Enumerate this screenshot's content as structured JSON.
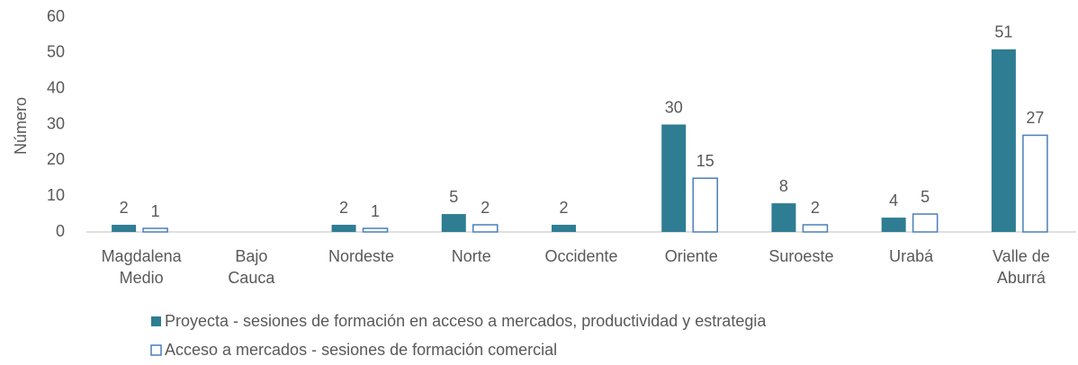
{
  "chart_data": {
    "type": "bar",
    "categories": [
      "Magdalena\nMedio",
      "Bajo\nCauca",
      "Nordeste",
      "Norte",
      "Occidente",
      "Oriente",
      "Suroeste",
      "Urabá",
      "Valle de\nAburrá"
    ],
    "y_label": "Número",
    "series": [
      {
        "name": "Proyecta - sesiones de formación en acceso a mercados, productividad y estrategia",
        "color": "#2e7d93",
        "fill": "solid",
        "values": [
          2,
          null,
          2,
          5,
          2,
          30,
          8,
          4,
          51
        ]
      },
      {
        "name": "Acceso a mercados - sesiones de formación comercial",
        "color": "#4a7ebb",
        "fill": "outline",
        "values": [
          1,
          null,
          1,
          2,
          null,
          15,
          2,
          5,
          27
        ]
      }
    ],
    "ylim": [
      0,
      60
    ],
    "yticks": [
      0,
      10,
      20,
      30,
      40,
      50,
      60
    ],
    "grid": false,
    "legend": "bottom"
  }
}
